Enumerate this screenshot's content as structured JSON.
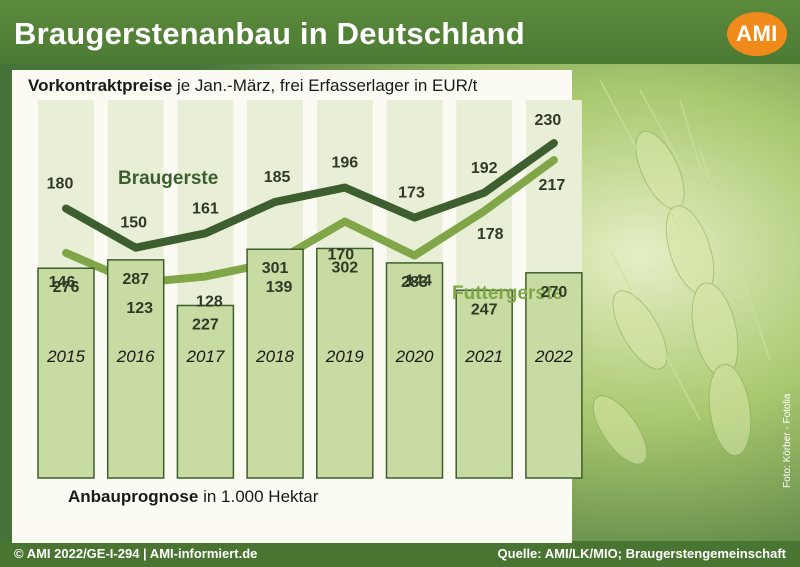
{
  "header": {
    "title": "Braugerstenanbau in Deutschland",
    "logo": "AMI"
  },
  "subtitle": {
    "bold": "Vorkontraktpreise",
    "rest": " je Jan.-März, frei Erfasserlager in EUR/t"
  },
  "area_caption": {
    "bold": "Anbauprognose",
    "rest": " in 1.000 Hektar"
  },
  "footer": {
    "left": "© AMI 2022/GE-I-294 | AMI-informiert.de",
    "right": "Quelle: AMI/LK/MIO; Braugerstengemeinschaft"
  },
  "photo_credit": "Foto: Körber - Fotolia",
  "colors": {
    "brau": "#3d5e2e",
    "futter": "#80a648",
    "bar_fill": "#c8dba2",
    "bar_stroke": "#3d5e2e",
    "orange": "#f08a1a"
  },
  "chart_data": [
    {
      "type": "line",
      "title": "Vorkontraktpreise je Jan.-März, frei Erfasserlager in EUR/t",
      "x": [
        "2015",
        "2016",
        "2017",
        "2018",
        "2019",
        "2020",
        "2021",
        "2022"
      ],
      "series": [
        {
          "name": "Braugerste",
          "values": [
            180,
            150,
            161,
            185,
            196,
            173,
            192,
            230
          ]
        },
        {
          "name": "Futtergerste",
          "values": [
            146,
            123,
            128,
            139,
            170,
            144,
            178,
            217
          ]
        }
      ],
      "ylim": [
        110,
        240
      ],
      "grid": false
    },
    {
      "type": "bar",
      "title": "Anbauprognose in 1.000 Hektar",
      "categories": [
        "2015",
        "2016",
        "2017",
        "2018",
        "2019",
        "2020",
        "2021",
        "2022"
      ],
      "values": [
        276,
        287,
        227,
        301,
        302,
        283,
        247,
        270
      ],
      "ylim": [
        0,
        320
      ]
    }
  ]
}
